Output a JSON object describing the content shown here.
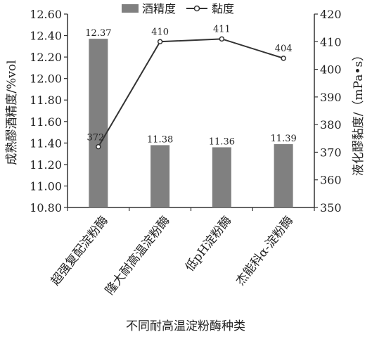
{
  "chart_data": {
    "type": "bar",
    "categories": [
      "超强复配淀粉酶",
      "隆大耐高温淀粉酶",
      "低pH淀粉酶",
      "杰能科α-淀粉酶"
    ],
    "series": [
      {
        "name": "酒精度",
        "type": "bar",
        "axis": "left",
        "values": [
          12.37,
          11.38,
          11.36,
          11.39
        ],
        "color": "#808080"
      },
      {
        "name": "黏度",
        "type": "line",
        "axis": "right",
        "values": [
          372,
          410,
          411,
          404
        ],
        "color": "#333333"
      }
    ],
    "ylabel_left": "成熟醪酒精度/%vol",
    "ylabel_right": "液化醪黏度/（mPa•s）",
    "xlabel": "不同耐高温淀粉酶种类",
    "ylim_left": [
      10.8,
      12.6
    ],
    "ylim_right": [
      350,
      420
    ],
    "yticks_left": [
      "10.80",
      "11.00",
      "11.20",
      "11.40",
      "11.60",
      "11.80",
      "12.00",
      "12.20",
      "12.40",
      "12.60"
    ],
    "yticks_right": [
      "350",
      "360",
      "370",
      "380",
      "390",
      "400",
      "410",
      "420"
    ],
    "data_labels_bar": [
      "12.37",
      "11.38",
      "11.36",
      "11.39"
    ],
    "data_labels_line": [
      "372",
      "410",
      "411",
      "404"
    ],
    "legend_position": "top",
    "grid": false
  }
}
